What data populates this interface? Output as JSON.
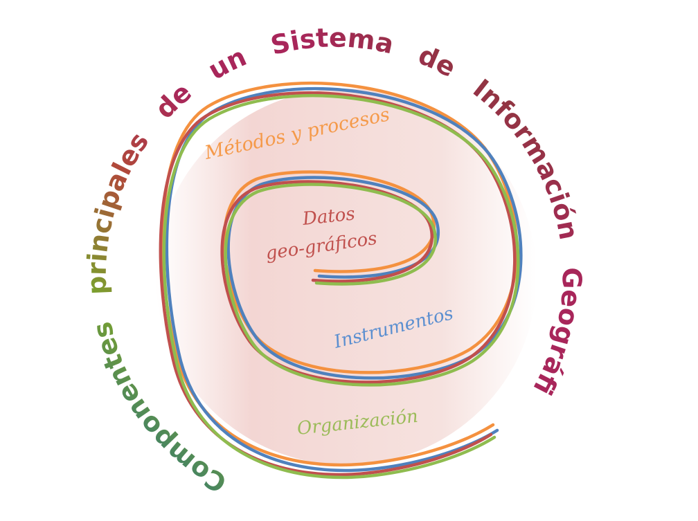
{
  "diagram": {
    "title_words": [
      "Componentes",
      "principales",
      "de",
      "un",
      "Sistema",
      "de",
      "Información",
      "Geográfica"
    ],
    "labels": {
      "methods": "Métodos y procesos",
      "data_line1": "Datos",
      "data_line2": "geo-gráficos",
      "instruments": "Instrumentos",
      "organization": "Organización"
    },
    "colors": {
      "methods": "#f59a4a",
      "data": "#c0504d",
      "instruments": "#5b8fd0",
      "organization": "#9bbb59",
      "disc": "#f2d4d2"
    },
    "strands": [
      {
        "name": "orange",
        "color": "#f4913f"
      },
      {
        "name": "blue",
        "color": "#4f81bd"
      },
      {
        "name": "red",
        "color": "#c0504d"
      },
      {
        "name": "green",
        "color": "#8fbc4f"
      }
    ]
  }
}
